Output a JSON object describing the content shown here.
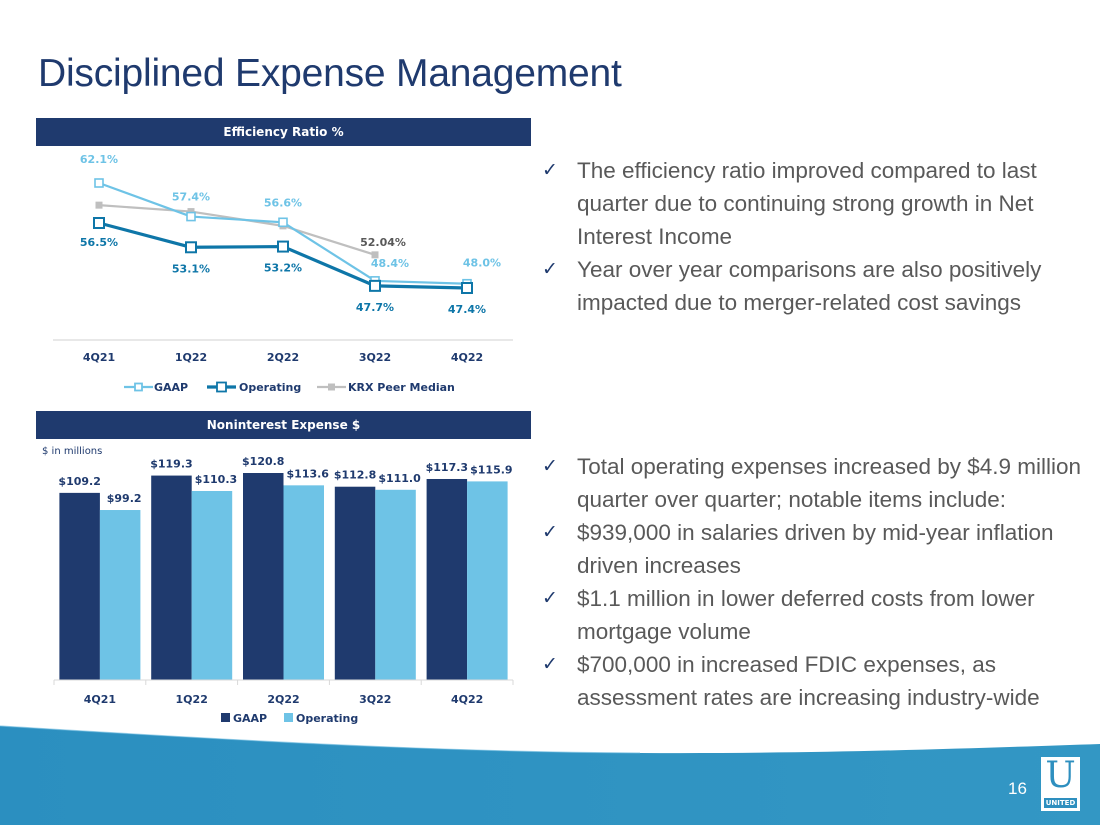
{
  "slide": {
    "title": "Disciplined Expense Management",
    "page_number": "16",
    "logo": {
      "letter": "U",
      "word": "UNITED"
    },
    "colors": {
      "navy": "#1f3a6e",
      "light_blue": "#6ec3e6",
      "teal": "#0e76a8",
      "gray": "#bfbfbf",
      "footer": "#2e95c3"
    }
  },
  "bullets_top": [
    "The efficiency ratio improved compared to last quarter due to continuing strong growth in Net Interest Income",
    "Year over year comparisons are also positively impacted due to merger-related cost savings"
  ],
  "bullets_bottom": [
    "Total operating expenses increased by $4.9 million quarter over quarter; notable items include:",
    "$939,000 in salaries driven by mid-year inflation driven increases",
    "$1.1 million in lower deferred costs from lower mortgage volume",
    "$700,000 in increased FDIC expenses, as assessment rates are increasing industry-wide"
  ],
  "check_glyph": "✓",
  "chart_data": [
    {
      "type": "line",
      "title": "Efficiency Ratio %",
      "categories": [
        "4Q21",
        "1Q22",
        "2Q22",
        "3Q22",
        "4Q22"
      ],
      "xlabel": "",
      "ylabel": "",
      "ylim": [
        40,
        65
      ],
      "grid": false,
      "legend": "bottom",
      "series": [
        {
          "name": "GAAP",
          "values": [
            62.1,
            57.4,
            56.6,
            48.4,
            48.0
          ],
          "labels": [
            "62.1%",
            "57.4%",
            "56.6%",
            "48.4%",
            "48.0%"
          ],
          "color": "#6ec3e6",
          "marker": "hollow-square"
        },
        {
          "name": "Operating",
          "values": [
            56.5,
            53.1,
            53.2,
            47.7,
            47.4
          ],
          "labels": [
            "56.5%",
            "53.1%",
            "53.2%",
            "47.7%",
            "47.4%"
          ],
          "color": "#0e76a8",
          "marker": "hollow-square"
        },
        {
          "name": "KRX Peer Median",
          "values": [
            59.0,
            58.1,
            56.1,
            52.04,
            null
          ],
          "labels": [
            null,
            null,
            null,
            "52.04%",
            null
          ],
          "color": "#bfbfbf",
          "marker": "filled-square"
        }
      ]
    },
    {
      "type": "bar",
      "title": "Noninterest Expense $",
      "subtitle": "$ in millions",
      "categories": [
        "4Q21",
        "1Q22",
        "2Q22",
        "3Q22",
        "4Q22"
      ],
      "xlabel": "",
      "ylabel": "",
      "ylim": [
        0,
        125
      ],
      "grid": false,
      "legend": "bottom",
      "series": [
        {
          "name": "GAAP",
          "values": [
            109.2,
            119.3,
            120.8,
            112.8,
            117.3
          ],
          "labels": [
            "$109.2",
            "$119.3",
            "$120.8",
            "$112.8",
            "$117.3"
          ],
          "color": "#1f3a6e"
        },
        {
          "name": "Operating",
          "values": [
            99.2,
            110.3,
            113.6,
            111.0,
            115.9
          ],
          "labels": [
            "$99.2",
            "$110.3",
            "$113.6",
            "$111.0",
            "$115.9"
          ],
          "color": "#6ec3e6"
        }
      ]
    }
  ]
}
